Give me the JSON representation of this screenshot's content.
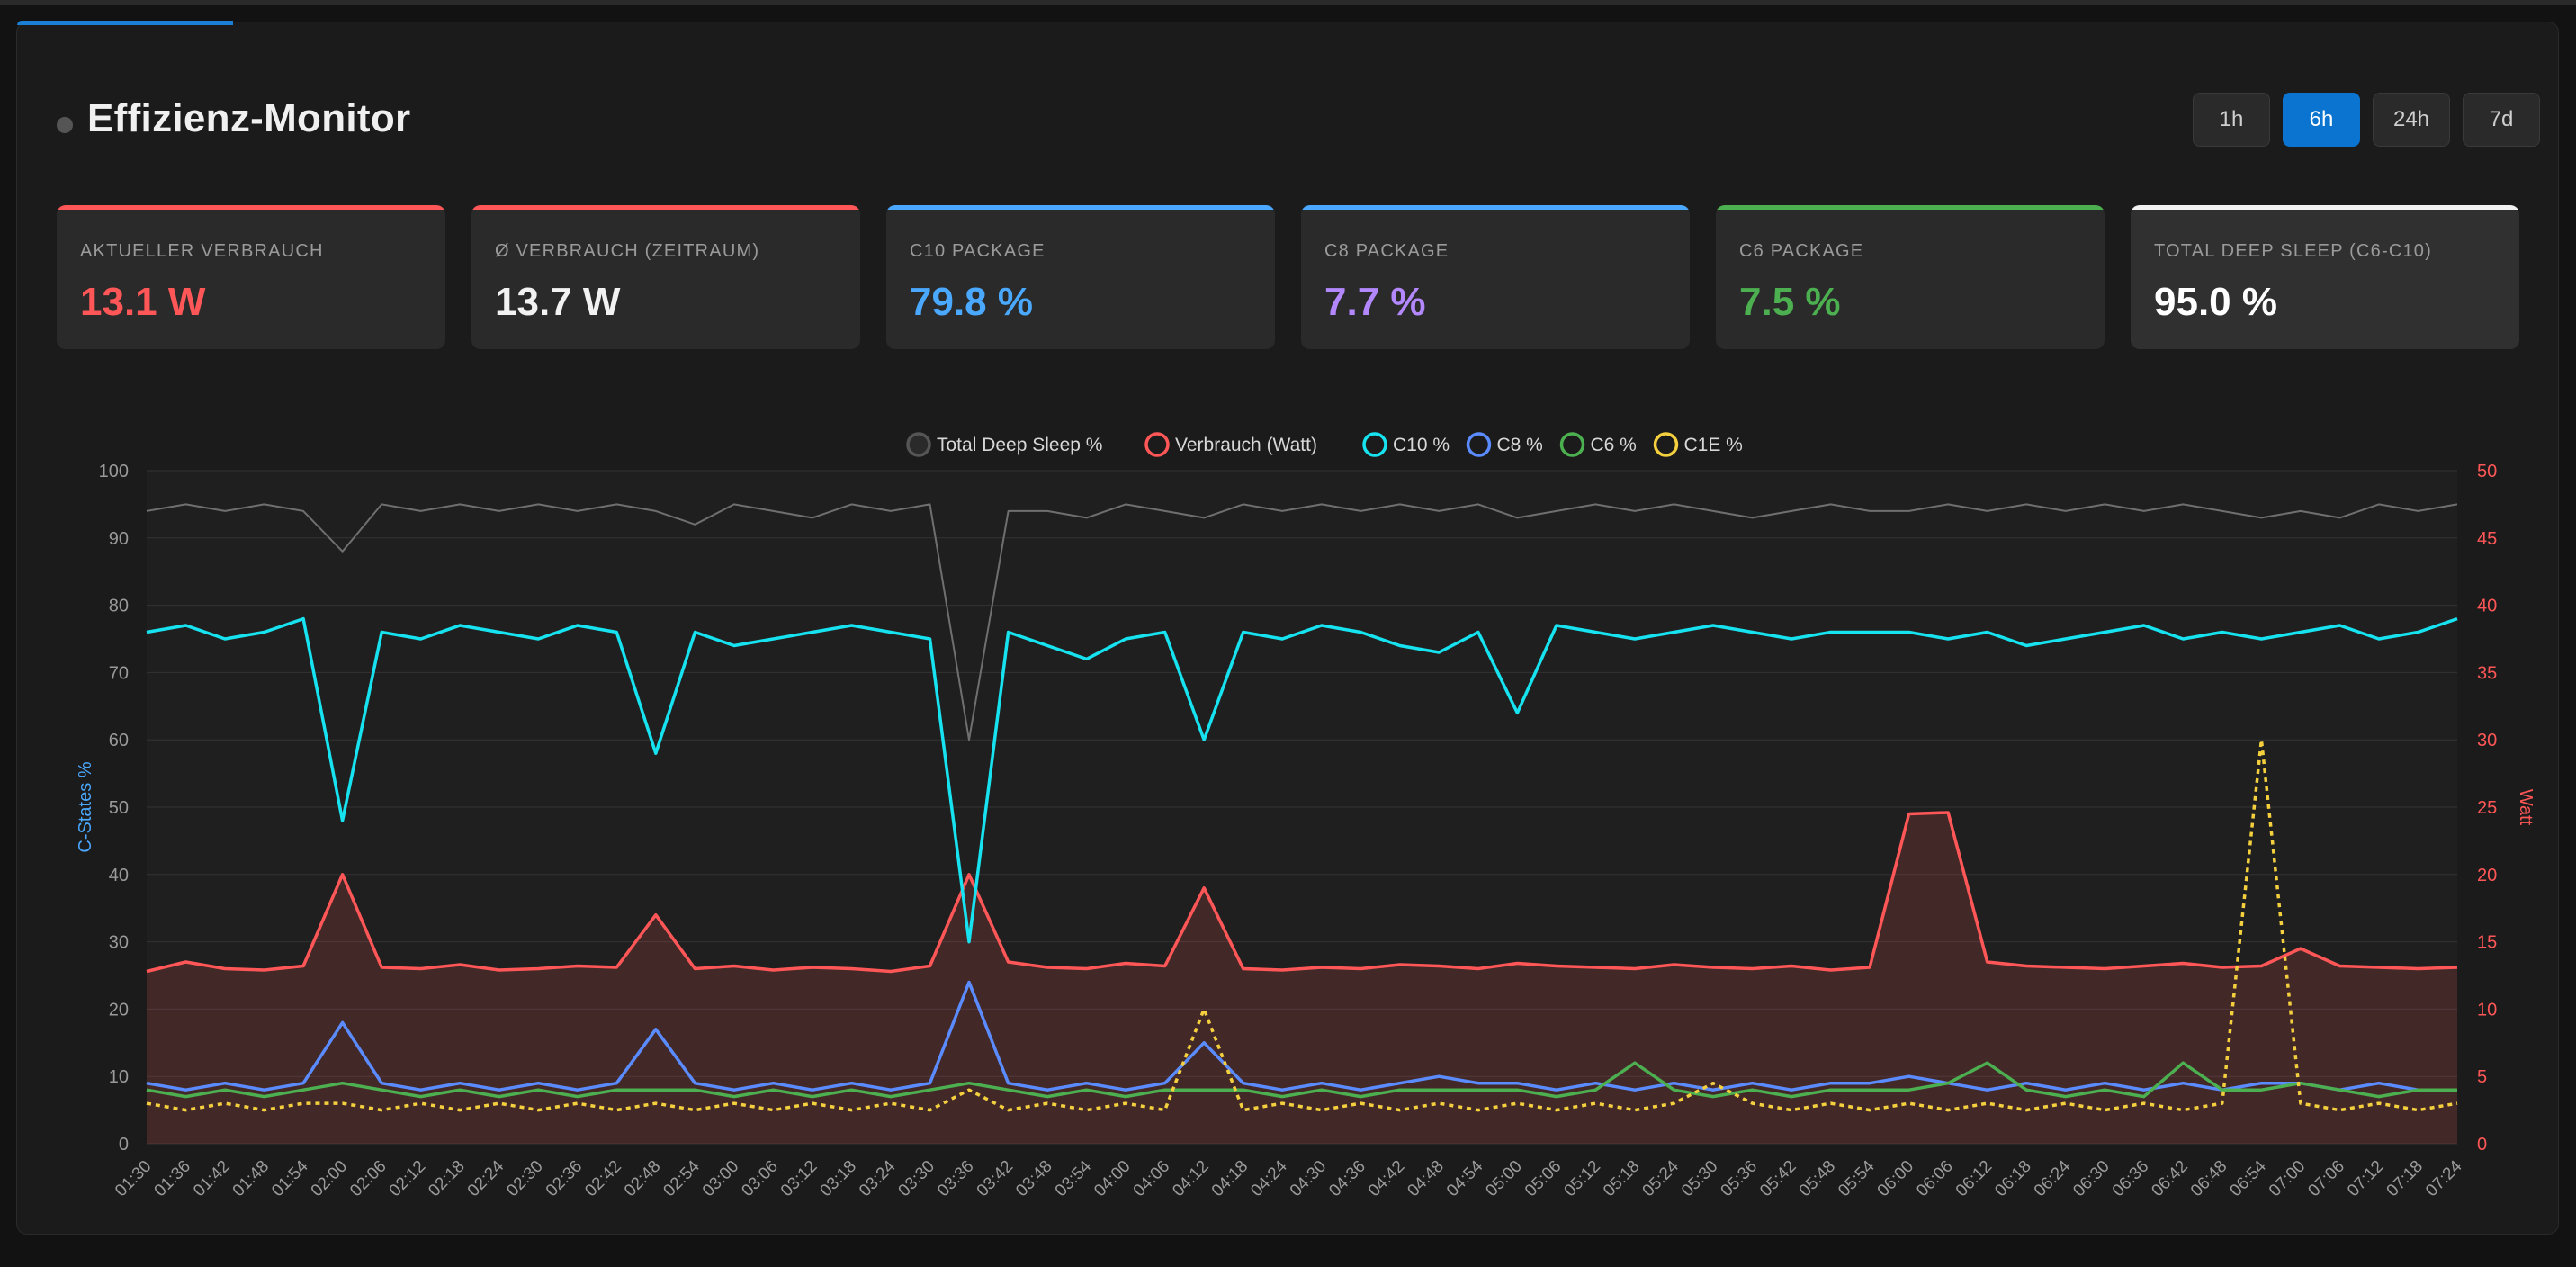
{
  "header": {
    "title": "Effizienz-Monitor",
    "ranges": [
      "1h",
      "6h",
      "24h",
      "7d"
    ],
    "active_range": "6h"
  },
  "cards": [
    {
      "label": "AKTUELLER VERBRAUCH",
      "value": "13.1 W",
      "color": "#ff5757",
      "bar": "#ff5757"
    },
    {
      "label": "Ø VERBRAUCH (ZEITRAUM)",
      "value": "13.7 W",
      "color": "#f2f2f2",
      "bar": "#ff5757"
    },
    {
      "label": "C10 PACKAGE",
      "value": "79.8 %",
      "color": "#4aa8ff",
      "bar": "#4aa8ff"
    },
    {
      "label": "C8 PACKAGE",
      "value": "7.7 %",
      "color": "#b388ff",
      "bar": "#4aa8ff"
    },
    {
      "label": "C6 PACKAGE",
      "value": "7.5 %",
      "color": "#4caf50",
      "bar": "#4caf50"
    },
    {
      "label": "TOTAL DEEP SLEEP (C6-C10)",
      "value": "95.0 %",
      "color": "#ffffff",
      "bar": "#f2f2f2"
    }
  ],
  "chart_data": {
    "type": "line",
    "ylabel": "C-States %",
    "y2label": "Watt",
    "ylim": [
      0,
      100
    ],
    "y2lim": [
      0,
      50
    ],
    "yticks": [
      0,
      10,
      20,
      30,
      40,
      50,
      60,
      70,
      80,
      90,
      100
    ],
    "y2ticks": [
      0,
      5,
      10,
      15,
      20,
      25,
      30,
      35,
      40,
      45,
      50
    ],
    "legend_position": "top-center",
    "grid": true,
    "x": [
      "01:30",
      "01:36",
      "01:42",
      "01:48",
      "01:54",
      "02:00",
      "02:06",
      "02:12",
      "02:18",
      "02:24",
      "02:30",
      "02:36",
      "02:42",
      "02:48",
      "02:54",
      "03:00",
      "03:06",
      "03:12",
      "03:18",
      "03:24",
      "03:30",
      "03:36",
      "03:42",
      "03:48",
      "03:54",
      "04:00",
      "04:06",
      "04:12",
      "04:18",
      "04:24",
      "04:30",
      "04:36",
      "04:42",
      "04:48",
      "04:54",
      "05:00",
      "05:06",
      "05:12",
      "05:18",
      "05:24",
      "05:30",
      "05:36",
      "05:42",
      "05:48",
      "05:54",
      "06:00",
      "06:06",
      "06:12",
      "06:18",
      "06:24",
      "06:30",
      "06:36",
      "06:42",
      "06:48",
      "06:54",
      "07:00",
      "07:06",
      "07:12",
      "07:18",
      "07:24"
    ],
    "series": [
      {
        "name": "Total Deep Sleep %",
        "axis": "left",
        "color": "#6f6f6f",
        "values": [
          94,
          95,
          94,
          95,
          94,
          88,
          95,
          94,
          95,
          94,
          95,
          94,
          95,
          94,
          92,
          95,
          94,
          93,
          95,
          94,
          95,
          60,
          94,
          94,
          93,
          95,
          94,
          93,
          95,
          94,
          95,
          94,
          95,
          94,
          95,
          93,
          94,
          95,
          94,
          95,
          94,
          93,
          94,
          95,
          94,
          94,
          95,
          94,
          95,
          94,
          95,
          94,
          95,
          94,
          93,
          94,
          93,
          95,
          94,
          95
        ]
      },
      {
        "name": "Verbrauch (Watt)",
        "axis": "right",
        "color": "#ff5757",
        "values": [
          12.8,
          13.5,
          13.0,
          12.9,
          13.2,
          20,
          13.1,
          13.0,
          13.3,
          12.9,
          13.0,
          13.2,
          13.1,
          17,
          13.0,
          13.2,
          12.9,
          13.1,
          13.0,
          12.8,
          13.2,
          20,
          13.5,
          13.1,
          13.0,
          13.4,
          13.2,
          19,
          13.0,
          12.9,
          13.1,
          13.0,
          13.3,
          13.2,
          13.0,
          13.4,
          13.2,
          13.1,
          13.0,
          13.3,
          13.1,
          13.0,
          13.2,
          12.9,
          13.1,
          24.5,
          24.6,
          13.5,
          13.2,
          13.1,
          13.0,
          13.2,
          13.4,
          13.1,
          13.2,
          14.5,
          13.2,
          13.1,
          13.0,
          13.1
        ]
      },
      {
        "name": "C10 %",
        "axis": "left",
        "color": "#17e3f0",
        "values": [
          76,
          77,
          75,
          76,
          78,
          48,
          76,
          75,
          77,
          76,
          75,
          77,
          76,
          58,
          76,
          74,
          75,
          76,
          77,
          76,
          75,
          30,
          76,
          74,
          72,
          75,
          76,
          60,
          76,
          75,
          77,
          76,
          74,
          73,
          76,
          64,
          77,
          76,
          75,
          76,
          77,
          76,
          75,
          76,
          76,
          76,
          75,
          76,
          74,
          75,
          76,
          77,
          75,
          76,
          75,
          76,
          77,
          75,
          76,
          78
        ]
      },
      {
        "name": "C8 %",
        "axis": "left",
        "color": "#5b8cff",
        "values": [
          9,
          8,
          9,
          8,
          9,
          18,
          9,
          8,
          9,
          8,
          9,
          8,
          9,
          17,
          9,
          8,
          9,
          8,
          9,
          8,
          9,
          24,
          9,
          8,
          9,
          8,
          9,
          15,
          9,
          8,
          9,
          8,
          9,
          10,
          9,
          9,
          8,
          9,
          8,
          9,
          8,
          9,
          8,
          9,
          9,
          10,
          9,
          8,
          9,
          8,
          9,
          8,
          9,
          8,
          9,
          9,
          8,
          9,
          8,
          8
        ]
      },
      {
        "name": "C6 %",
        "axis": "left",
        "color": "#4caf50",
        "values": [
          8,
          7,
          8,
          7,
          8,
          9,
          8,
          7,
          8,
          7,
          8,
          7,
          8,
          8,
          8,
          7,
          8,
          7,
          8,
          7,
          8,
          9,
          8,
          7,
          8,
          7,
          8,
          8,
          8,
          7,
          8,
          7,
          8,
          8,
          8,
          8,
          7,
          8,
          12,
          8,
          7,
          8,
          7,
          8,
          8,
          8,
          9,
          12,
          8,
          7,
          8,
          7,
          12,
          8,
          8,
          9,
          8,
          7,
          8,
          8
        ]
      },
      {
        "name": "C1E %",
        "axis": "left",
        "color": "#f4d03f",
        "values": [
          6,
          5,
          6,
          5,
          6,
          6,
          5,
          6,
          5,
          6,
          5,
          6,
          5,
          6,
          5,
          6,
          5,
          6,
          5,
          6,
          5,
          8,
          5,
          6,
          5,
          6,
          5,
          20,
          5,
          6,
          5,
          6,
          5,
          6,
          5,
          6,
          5,
          6,
          5,
          6,
          9,
          6,
          5,
          6,
          5,
          6,
          5,
          6,
          5,
          6,
          5,
          6,
          5,
          6,
          60,
          6,
          5,
          6,
          5,
          6
        ]
      }
    ]
  }
}
